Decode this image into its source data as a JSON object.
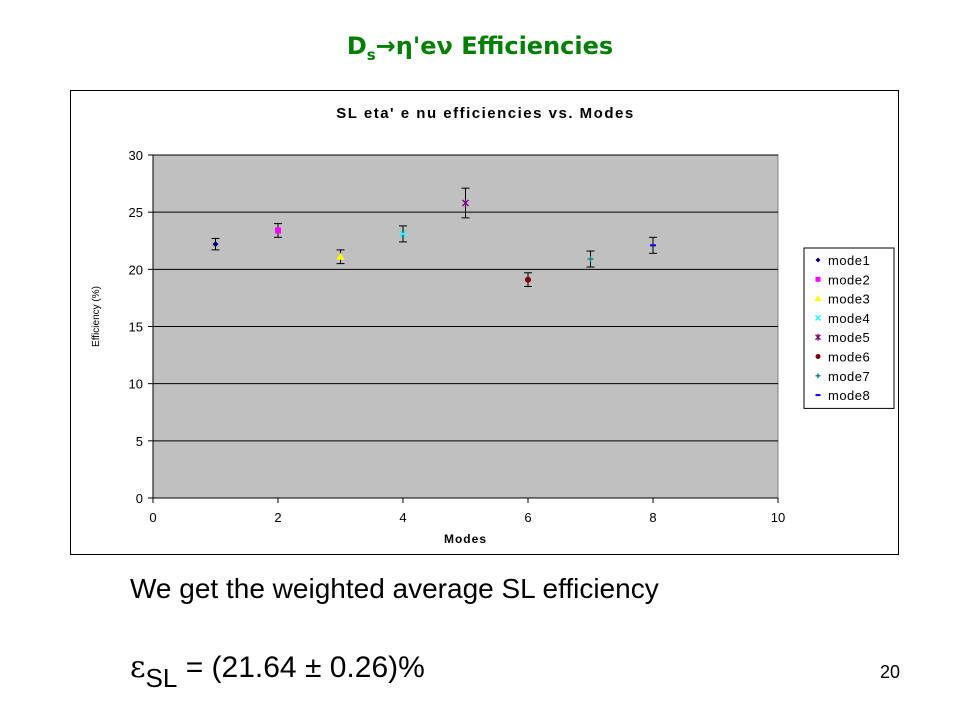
{
  "slide": {
    "title_main": "D",
    "title_sub": "s",
    "title_rest": "→η'eν Efficiencies",
    "body_text": "We get the weighted average SL efficiency",
    "formula_symbol": "ε",
    "formula_sub": "SL",
    "formula_rest": " = (21.64 ± 0.26)%",
    "page_number": "20",
    "title_color": "#008000"
  },
  "chart_data": {
    "type": "scatter",
    "title": "SL eta' e nu efficiencies vs. Modes",
    "xlabel": "Modes",
    "ylabel": "Efficiency (%)",
    "xlim": [
      0,
      10
    ],
    "ylim": [
      0,
      30
    ],
    "xticks": [
      "0",
      "2",
      "4",
      "6",
      "8",
      "10"
    ],
    "yticks": [
      "0",
      "5",
      "10",
      "15",
      "20",
      "25",
      "30"
    ],
    "grid": true,
    "plot_background": "#c0c0c0",
    "legend_position": "right",
    "series": [
      {
        "name": "mode1",
        "x": 1,
        "y": 22.2,
        "err": 0.5,
        "color": "#000080",
        "marker": "diamond"
      },
      {
        "name": "mode2",
        "x": 2,
        "y": 23.4,
        "err": 0.6,
        "color": "#ff00ff",
        "marker": "square"
      },
      {
        "name": "mode3",
        "x": 3,
        "y": 21.1,
        "err": 0.6,
        "color": "#ffff00",
        "marker": "triangle"
      },
      {
        "name": "mode4",
        "x": 4,
        "y": 23.1,
        "err": 0.7,
        "color": "#00ffff",
        "marker": "x"
      },
      {
        "name": "mode5",
        "x": 5,
        "y": 25.8,
        "err": 1.3,
        "color": "#800080",
        "marker": "star"
      },
      {
        "name": "mode6",
        "x": 6,
        "y": 19.1,
        "err": 0.6,
        "color": "#800000",
        "marker": "circle"
      },
      {
        "name": "mode7",
        "x": 7,
        "y": 20.9,
        "err": 0.7,
        "color": "#008080",
        "marker": "plus"
      },
      {
        "name": "mode8",
        "x": 8,
        "y": 22.1,
        "err": 0.7,
        "color": "#0000ff",
        "marker": "dash"
      }
    ]
  }
}
